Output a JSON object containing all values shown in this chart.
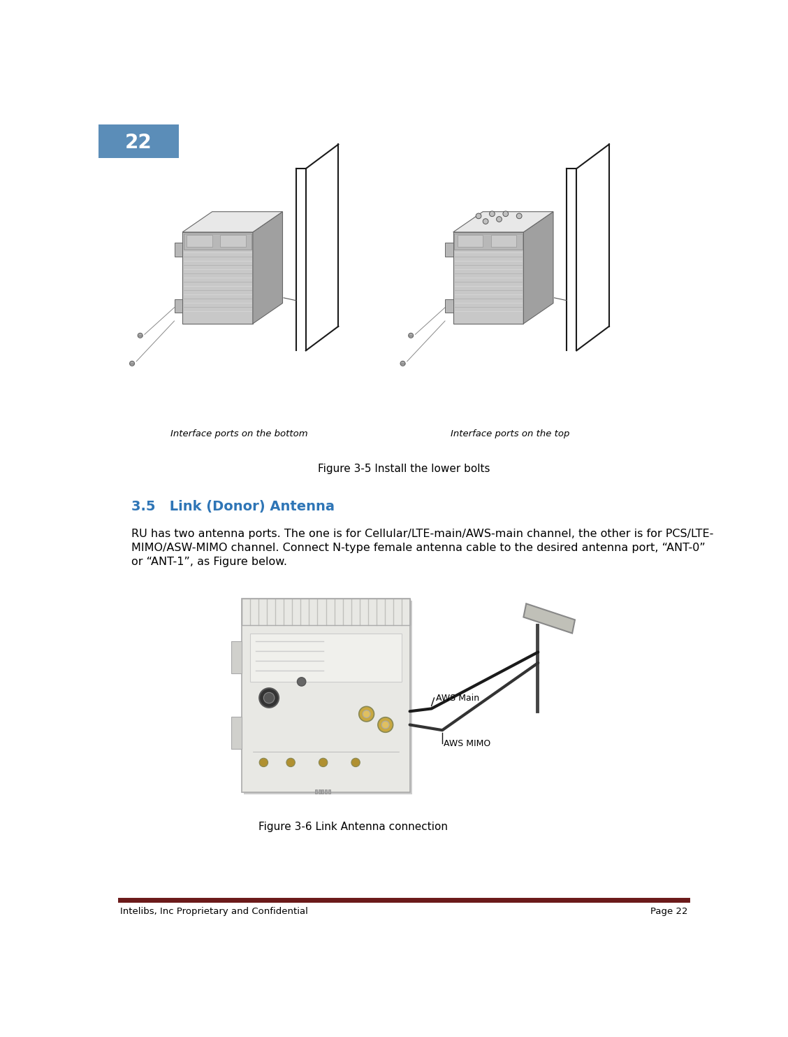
{
  "page_number": "22",
  "header_box_color": "#5b8db8",
  "header_text_color": "#ffffff",
  "footer_line_color": "#6b1a1a",
  "footer_text": "Intelibs, Inc Proprietary and Confidential",
  "footer_page": "Page 22",
  "figure1_caption": "Figure 3-5 Install the lower bolts",
  "figure1_label_left": "Interface ports on the bottom",
  "figure1_label_right": "Interface ports on the top",
  "section_title": "3.5   Link (Donor) Antenna",
  "section_title_color": "#2e75b6",
  "body_text_line1": "RU has two antenna ports. The one is for Cellular/LTE-main/AWS-main channel, the other is for PCS/LTE-",
  "body_text_line2": "MIMO/ASW-MIMO channel. Connect N-type female antenna cable to the desired antenna port, “ANT-0”",
  "body_text_line3": "or “ANT-1”, as Figure below.",
  "figure2_caption": "Figure 3-6 Link Antenna connection",
  "label_aws_main": "AWS Main",
  "label_aws_mimo": "AWS MIMO",
  "background_color": "#ffffff",
  "body_font_size": 11.5,
  "caption_font_size": 11,
  "section_font_size": 14,
  "fig1_device_color": "#c8c8c8",
  "fig1_device_dark": "#a0a0a0",
  "fig1_device_light": "#e8e8e8",
  "fig1_fin_color": "#b0b0b0",
  "fig1_bracket_color": "#000000",
  "fig1_top_panel_color": "#d0d0d0",
  "fig2_device_color": "#e0e0d8",
  "fig2_port_color": "#888860",
  "fig2_cable_color": "#222222",
  "fig2_antenna_color": "#aaaaaa"
}
